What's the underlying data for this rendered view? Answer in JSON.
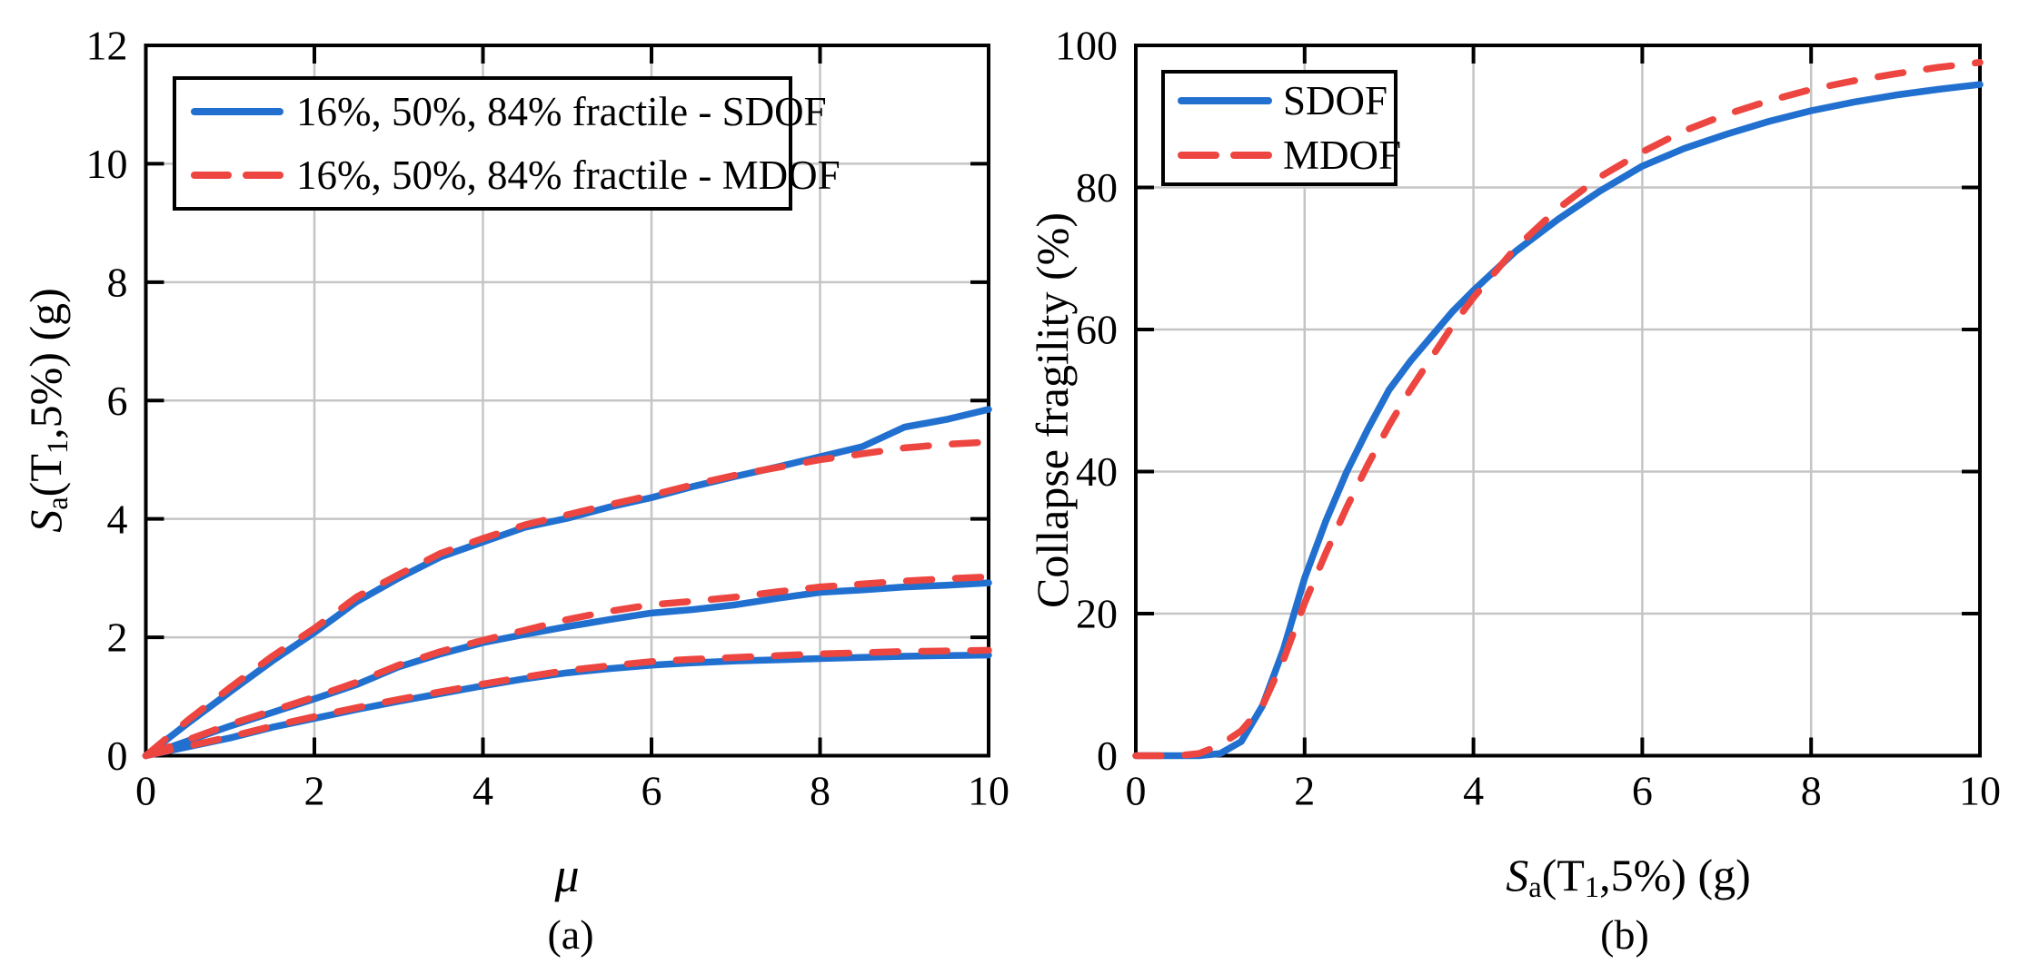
{
  "colors": {
    "sdof": "#2170cf",
    "mdof": "#ed4540",
    "grid": "#c5c5c5",
    "axis": "#000000",
    "background": "#ffffff",
    "text": "#000000"
  },
  "panels": {
    "a": {
      "caption": "(a)",
      "xlabel": "μ",
      "ylabel_parts": {
        "s1": "S",
        "sub1": "a",
        "s2": "(T",
        "sub2": "1",
        "s3": ",5%) (g)"
      },
      "legend": [
        {
          "label": "16%, 50%, 84% fractile - SDOF",
          "style": "solid",
          "color_key": "sdof"
        },
        {
          "label": "16%, 50%, 84% fractile - MDOF",
          "style": "dashed",
          "color_key": "mdof"
        }
      ]
    },
    "b": {
      "caption": "(b)",
      "ylabel": "Collapse fragility (%)",
      "xlabel_parts": {
        "s1": "S",
        "sub1": "a",
        "s2": "(T",
        "sub2": "1",
        "s3": ",5%) (g)"
      },
      "legend": [
        {
          "label": "SDOF",
          "style": "solid",
          "color_key": "sdof"
        },
        {
          "label": "MDOF",
          "style": "dashed",
          "color_key": "mdof"
        }
      ]
    }
  },
  "chart_data": [
    {
      "id": "panel_a",
      "type": "line",
      "title": "",
      "xlabel": "μ",
      "ylabel": "Sa(T1,5%) (g)",
      "xlim": [
        0,
        10
      ],
      "ylim": [
        0,
        12
      ],
      "x_ticks": [
        0,
        2,
        4,
        6,
        8,
        10
      ],
      "y_ticks": [
        0,
        2,
        4,
        6,
        8,
        10,
        12
      ],
      "grid": true,
      "legend_position": "upper left",
      "x": [
        0,
        0.5,
        1,
        1.5,
        2,
        2.5,
        3,
        3.5,
        4,
        4.5,
        5,
        5.5,
        6,
        6.5,
        7,
        7.5,
        8,
        8.5,
        9,
        9.5,
        10
      ],
      "series": [
        {
          "name": "16% fractile - SDOF",
          "color_key": "sdof",
          "style": "solid",
          "values": [
            0,
            0.15,
            0.3,
            0.48,
            0.63,
            0.78,
            0.92,
            1.05,
            1.18,
            1.3,
            1.4,
            1.47,
            1.53,
            1.57,
            1.6,
            1.62,
            1.64,
            1.66,
            1.68,
            1.69,
            1.7
          ]
        },
        {
          "name": "50% fractile - SDOF",
          "color_key": "sdof",
          "style": "solid",
          "values": [
            0,
            0.25,
            0.5,
            0.73,
            0.96,
            1.2,
            1.5,
            1.72,
            1.91,
            2.05,
            2.18,
            2.3,
            2.41,
            2.47,
            2.55,
            2.66,
            2.76,
            2.8,
            2.85,
            2.88,
            2.92
          ]
        },
        {
          "name": "84% fractile - SDOF",
          "color_key": "sdof",
          "style": "solid",
          "values": [
            0,
            0.55,
            1.08,
            1.6,
            2.08,
            2.6,
            3.0,
            3.36,
            3.61,
            3.86,
            4.01,
            4.2,
            4.36,
            4.55,
            4.72,
            4.88,
            5.05,
            5.22,
            5.55,
            5.68,
            5.85
          ]
        },
        {
          "name": "16% fractile - MDOF",
          "color_key": "mdof",
          "style": "dashed",
          "values": [
            0,
            0.16,
            0.32,
            0.5,
            0.66,
            0.81,
            0.95,
            1.08,
            1.21,
            1.33,
            1.44,
            1.52,
            1.59,
            1.63,
            1.66,
            1.69,
            1.72,
            1.74,
            1.76,
            1.77,
            1.78
          ]
        },
        {
          "name": "50% fractile - MDOF",
          "color_key": "mdof",
          "style": "dashed",
          "values": [
            0,
            0.27,
            0.53,
            0.76,
            0.99,
            1.24,
            1.53,
            1.76,
            1.95,
            2.12,
            2.3,
            2.44,
            2.55,
            2.61,
            2.68,
            2.77,
            2.85,
            2.9,
            2.95,
            2.99,
            3.02
          ]
        },
        {
          "name": "84% fractile - MDOF",
          "color_key": "mdof",
          "style": "dashed",
          "values": [
            0,
            0.6,
            1.15,
            1.68,
            2.15,
            2.68,
            3.06,
            3.42,
            3.67,
            3.9,
            4.07,
            4.24,
            4.4,
            4.58,
            4.74,
            4.87,
            5.0,
            5.1,
            5.2,
            5.26,
            5.3
          ]
        }
      ]
    },
    {
      "id": "panel_b",
      "type": "line",
      "title": "",
      "xlabel": "Sa(T1,5%) (g)",
      "ylabel": "Collapse fragility (%)",
      "xlim": [
        0,
        10
      ],
      "ylim": [
        0,
        100
      ],
      "x_ticks": [
        0,
        2,
        4,
        6,
        8,
        10
      ],
      "y_ticks": [
        0,
        20,
        40,
        60,
        80,
        100
      ],
      "grid": true,
      "legend_position": "upper left",
      "x": [
        0,
        0.25,
        0.5,
        0.75,
        1,
        1.25,
        1.5,
        1.75,
        2,
        2.25,
        2.5,
        2.75,
        3,
        3.25,
        3.5,
        3.75,
        4,
        4.5,
        5,
        5.5,
        6,
        6.5,
        7,
        7.5,
        8,
        8.5,
        9,
        9.5,
        10
      ],
      "series": [
        {
          "name": "SDOF",
          "color_key": "sdof",
          "style": "solid",
          "values": [
            0,
            0,
            0,
            0,
            0.3,
            2,
            7,
            15,
            25,
            33,
            40,
            46,
            51.5,
            55.5,
            59,
            62.5,
            65.5,
            71,
            75.5,
            79.5,
            83,
            85.5,
            87.5,
            89.3,
            90.8,
            92,
            93,
            93.8,
            94.5
          ]
        },
        {
          "name": "MDOF",
          "color_key": "mdof",
          "style": "dashed",
          "values": [
            0,
            0,
            0,
            0.3,
            1.5,
            3.5,
            7,
            13.5,
            21.5,
            28.5,
            35,
            41,
            46.5,
            51.5,
            56,
            60.5,
            64.5,
            71.5,
            77,
            81.5,
            85,
            88,
            90.3,
            92.2,
            93.8,
            95,
            96,
            96.9,
            97.6
          ]
        }
      ]
    }
  ]
}
